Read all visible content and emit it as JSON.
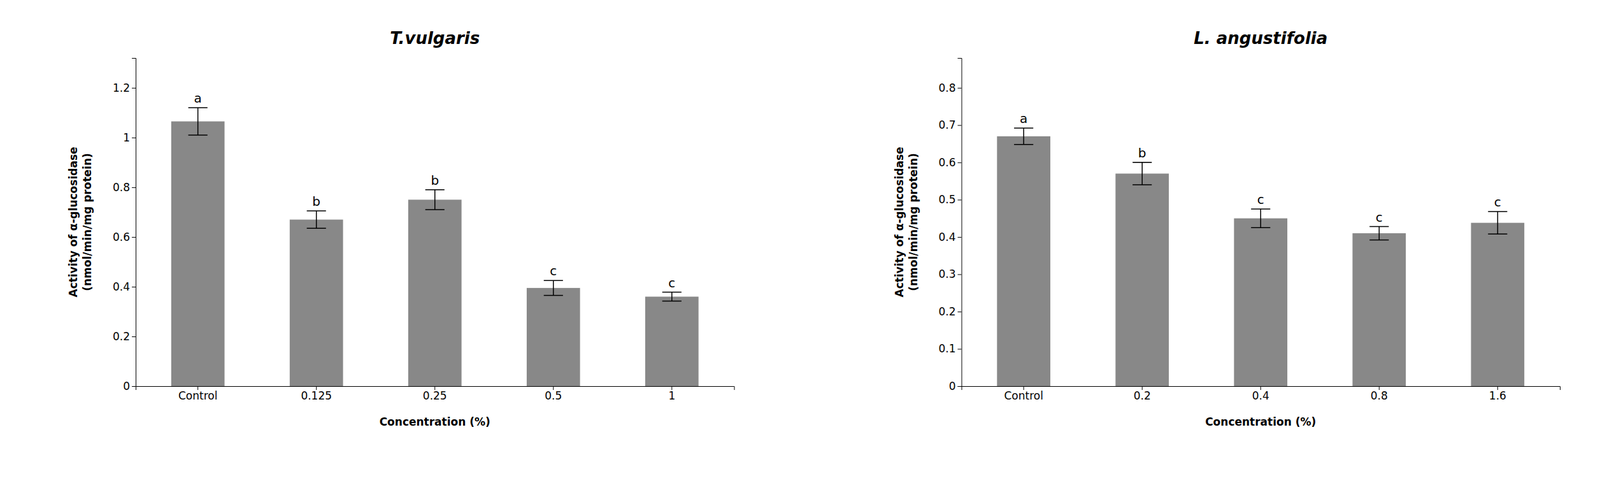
{
  "chart_data": [
    {
      "type": "bar",
      "title": "T.vulgaris",
      "categories": [
        "Control",
        "0.125",
        "0.25",
        "0.5",
        "1"
      ],
      "values": [
        1.065,
        0.67,
        0.75,
        0.395,
        0.36
      ],
      "errors": [
        0.055,
        0.035,
        0.04,
        0.03,
        0.018
      ],
      "annotations": [
        "a",
        "b",
        "b",
        "c",
        "c"
      ],
      "ylabel": "Activity of α-glucosidase\n(nmol/min/mg protein)",
      "xlabel": "Concentration (%)",
      "ylim": [
        0,
        1.32
      ],
      "yticks": [
        0,
        0.2,
        0.4,
        0.6,
        0.8,
        1,
        1.2
      ],
      "color": "#888888",
      "grid": false
    },
    {
      "type": "bar",
      "title": "L. angustifolia",
      "categories": [
        "Control",
        "0.2",
        "0.4",
        "0.8",
        "1.6"
      ],
      "values": [
        0.67,
        0.57,
        0.45,
        0.41,
        0.438
      ],
      "errors": [
        0.022,
        0.03,
        0.025,
        0.018,
        0.03
      ],
      "annotations": [
        "a",
        "b",
        "c",
        "c",
        "c"
      ],
      "ylabel": "Activity of α-glucosidase\n(nmol/min/mg protein)",
      "xlabel": "Concentration (%)",
      "ylim": [
        0,
        0.88
      ],
      "yticks": [
        0,
        0.1,
        0.2,
        0.3,
        0.4,
        0.5,
        0.6,
        0.7,
        0.8
      ],
      "color": "#888888",
      "grid": false
    }
  ]
}
